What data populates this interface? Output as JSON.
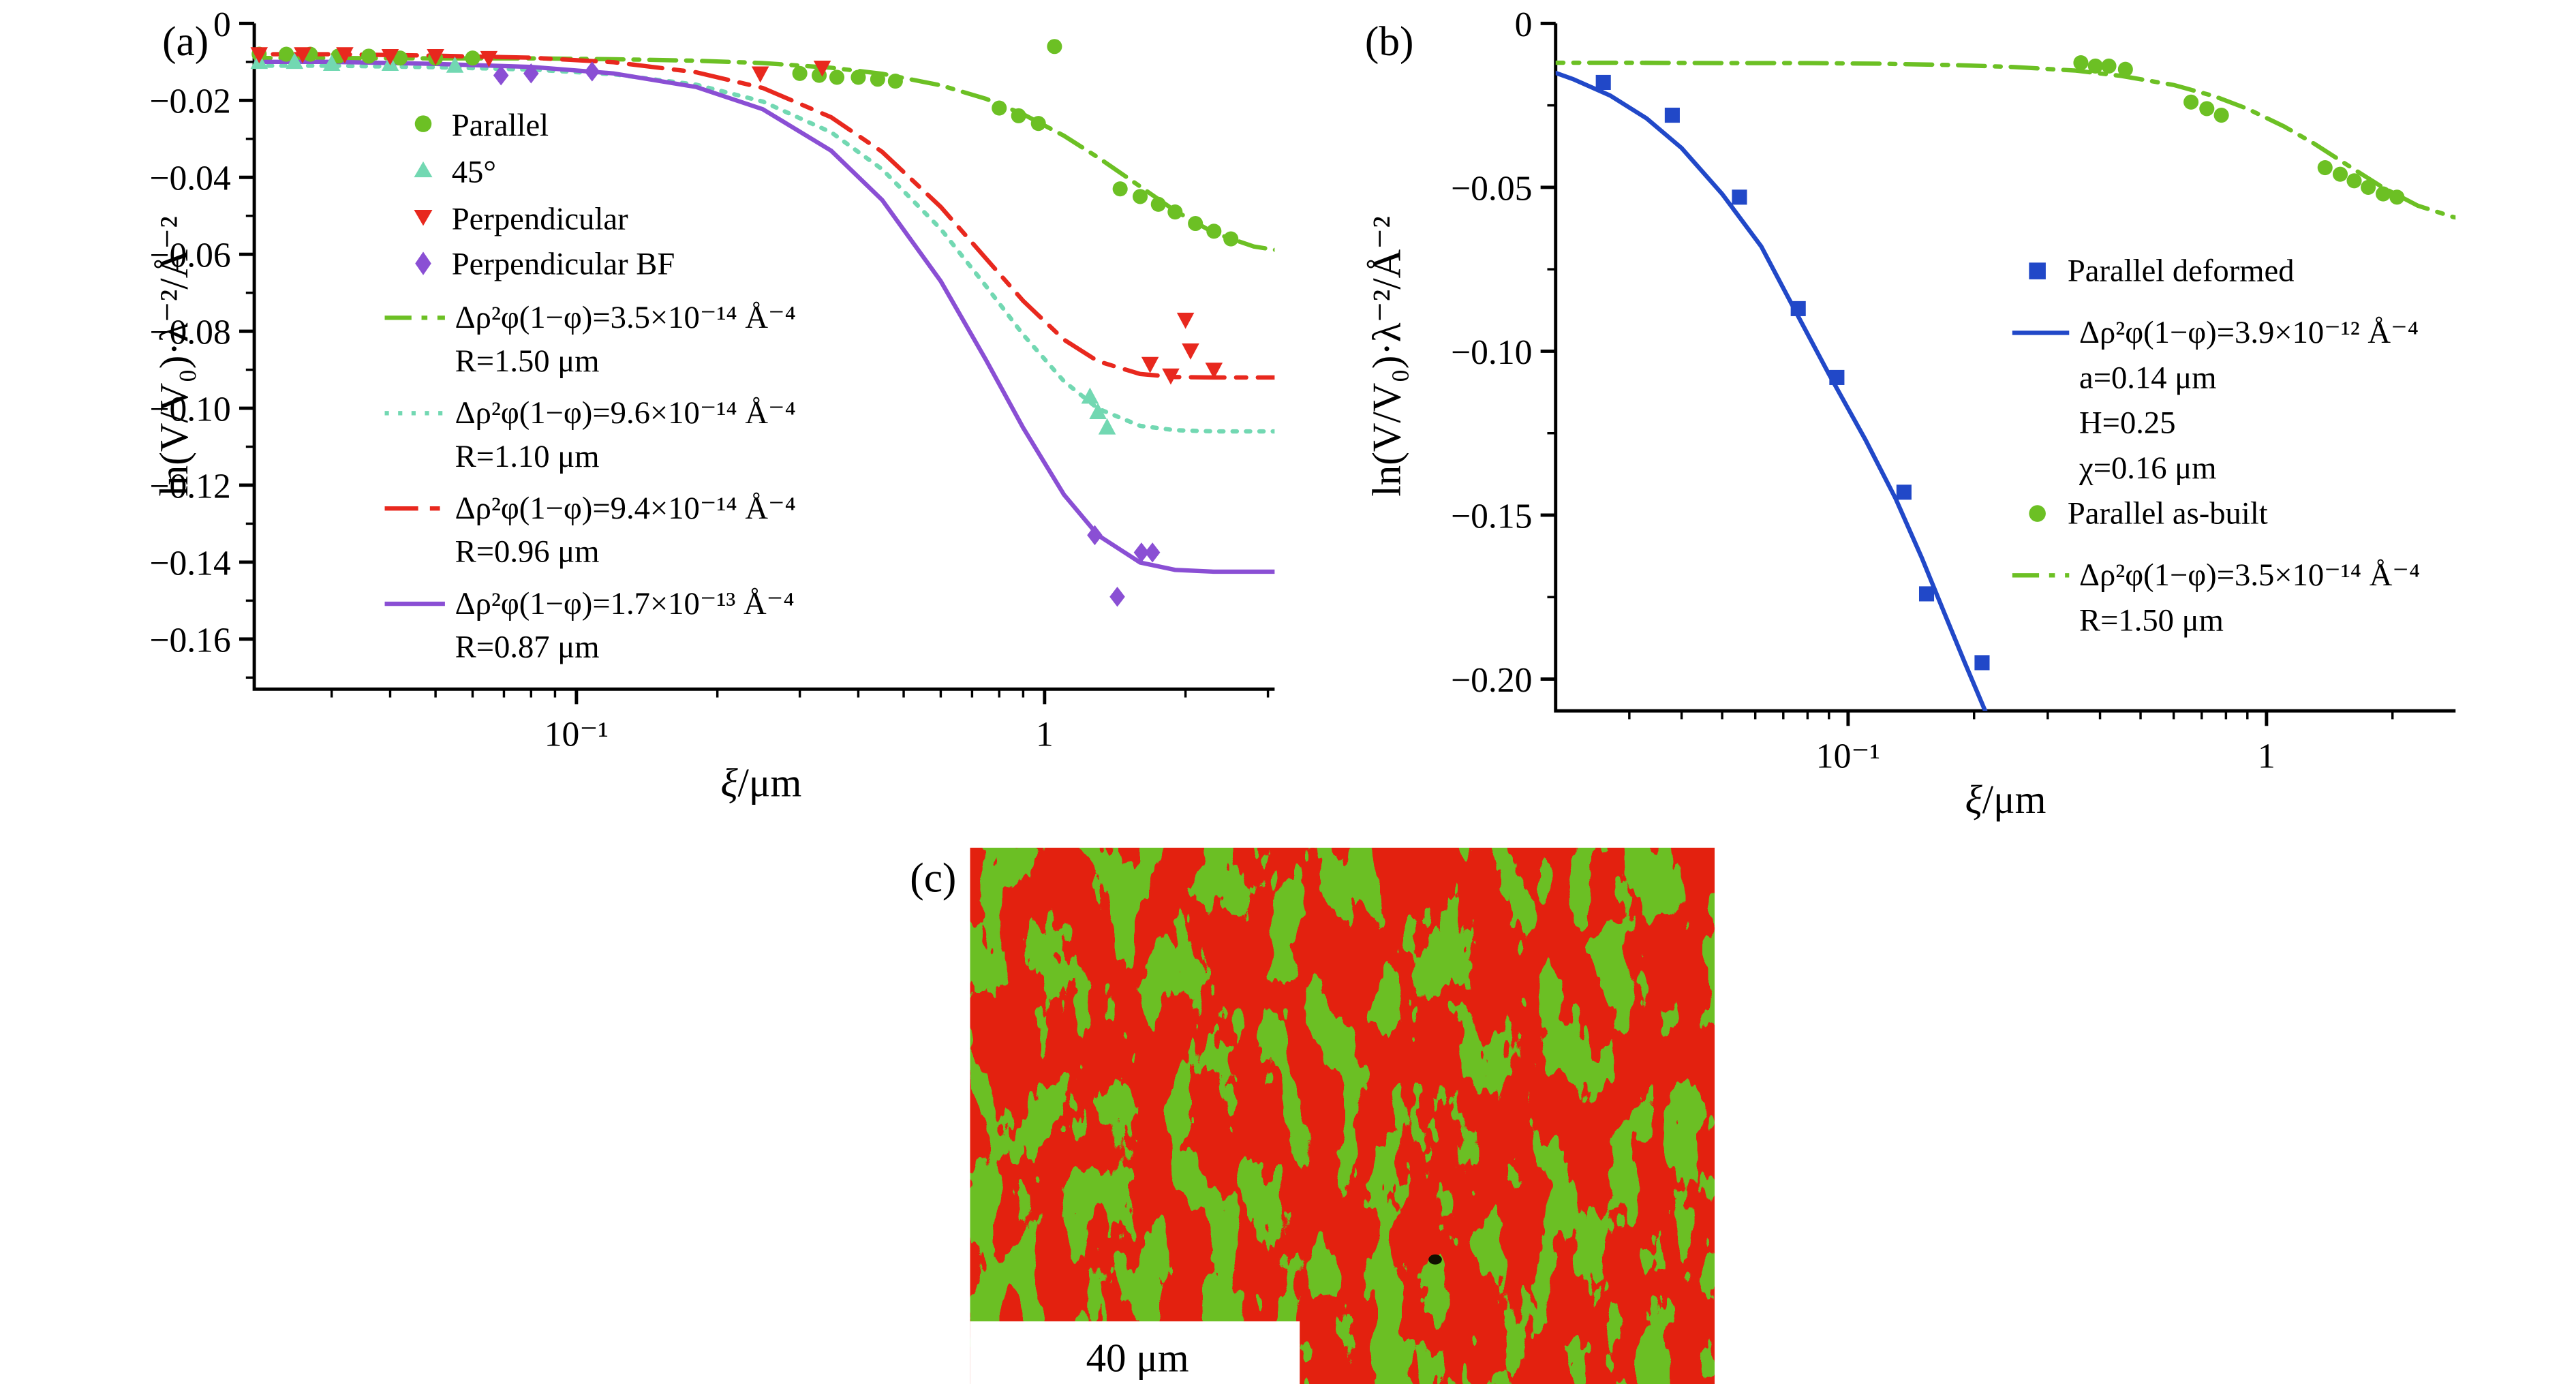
{
  "figure": {
    "panels": [
      {
        "label": "(a)"
      },
      {
        "label": "(b)"
      },
      {
        "label": "(c)"
      }
    ]
  },
  "chart_data": [
    {
      "id": "panel_a",
      "type": "scatter",
      "x_scale": "log",
      "xlabel_symbol": "ξ",
      "xlabel_unit": "/μm",
      "ylabel": "ln(V/V₀)·λ⁻²/Å⁻²",
      "xlim": [
        0.0205,
        3.1
      ],
      "ylim": [
        -0.173,
        0
      ],
      "grid": false,
      "legend_position": "upper-left-inside",
      "x_ticks": [
        {
          "value": 0.1,
          "label": "10⁻¹"
        },
        {
          "value": 1,
          "label": "1"
        }
      ],
      "y_ticks": [
        {
          "value": 0,
          "label": "0"
        },
        {
          "value": -0.02,
          "label": "−0.02"
        },
        {
          "value": -0.04,
          "label": "−0.04"
        },
        {
          "value": -0.06,
          "label": "−0.06"
        },
        {
          "value": -0.08,
          "label": "−0.08"
        },
        {
          "value": -0.1,
          "label": "−0.10"
        },
        {
          "value": -0.12,
          "label": "−0.12"
        },
        {
          "value": -0.14,
          "label": "−0.14"
        },
        {
          "value": -0.16,
          "label": "−0.16"
        }
      ],
      "y_minor": [
        -0.01,
        -0.03,
        -0.05,
        -0.07,
        -0.09,
        -0.11,
        -0.13,
        -0.15,
        -0.17
      ],
      "series": [
        {
          "name": "Parallel",
          "marker": "circle",
          "color": "#6CC024",
          "x": [
            0.021,
            0.024,
            0.027,
            0.031,
            0.036,
            0.042,
            0.05,
            0.06,
            0.3,
            0.33,
            0.36,
            0.4,
            0.44,
            0.48,
            0.8,
            0.88,
            0.97,
            1.05,
            1.45,
            1.6,
            1.75,
            1.9,
            2.1,
            2.3,
            2.5
          ],
          "y": [
            -0.008,
            -0.008,
            -0.008,
            -0.0085,
            -0.0085,
            -0.009,
            -0.009,
            -0.009,
            -0.013,
            -0.0135,
            -0.014,
            -0.014,
            -0.0145,
            -0.015,
            -0.022,
            -0.024,
            -0.026,
            -0.006,
            -0.043,
            -0.045,
            -0.047,
            -0.049,
            -0.052,
            -0.054,
            -0.056
          ]
        },
        {
          "name": "45°",
          "marker": "triangle-up",
          "color": "#72D8B2",
          "x": [
            0.021,
            0.025,
            0.03,
            0.04,
            0.055,
            1.25,
            1.3,
            1.36
          ],
          "y": [
            -0.01,
            -0.01,
            -0.0105,
            -0.0105,
            -0.011,
            -0.097,
            -0.101,
            -0.105
          ]
        },
        {
          "name": "Perpendicular",
          "marker": "triangle-down",
          "color": "#E8281E",
          "x": [
            0.021,
            0.026,
            0.032,
            0.04,
            0.05,
            0.065,
            0.247,
            0.335,
            1.68,
            1.86,
            2.0,
            2.05,
            2.3
          ],
          "y": [
            -0.008,
            -0.008,
            -0.008,
            -0.0085,
            -0.0085,
            -0.009,
            -0.013,
            -0.0115,
            -0.0885,
            -0.0915,
            -0.077,
            -0.085,
            -0.09
          ]
        },
        {
          "name": "Perpendicular BF",
          "marker": "diamond",
          "color": "#8A4FD4",
          "x": [
            0.069,
            0.08,
            0.108,
            1.28,
            1.43,
            1.61,
            1.7
          ],
          "y": [
            -0.0135,
            -0.013,
            -0.0125,
            -0.133,
            -0.149,
            -0.1375,
            -0.1375
          ]
        }
      ],
      "fits": [
        {
          "label1": "Δρ²φ(1−φ)=3.5×10⁻¹⁴ Å⁻⁴",
          "label2": "R=1.50 μm",
          "color": "#6CC024",
          "dash": "dashdot",
          "x": [
            0.018,
            0.03,
            0.05,
            0.08,
            0.12,
            0.18,
            0.25,
            0.35,
            0.45,
            0.6,
            0.75,
            0.9,
            1.1,
            1.3,
            1.6,
            1.9,
            2.3,
            2.8,
            3.4,
            4.0
          ],
          "y": [
            -0.009,
            -0.009,
            -0.0091,
            -0.0091,
            -0.0093,
            -0.0097,
            -0.0103,
            -0.0115,
            -0.0131,
            -0.0161,
            -0.0196,
            -0.0236,
            -0.0292,
            -0.0348,
            -0.0424,
            -0.0487,
            -0.0544,
            -0.058,
            -0.0596,
            -0.06
          ]
        },
        {
          "label1": "Δρ²φ(1−φ)=9.6×10⁻¹⁴ Å⁻⁴",
          "label2": "R=1.10 μm",
          "color": "#72D8B2",
          "dash": "dotted",
          "x": [
            0.018,
            0.03,
            0.05,
            0.08,
            0.12,
            0.18,
            0.25,
            0.35,
            0.45,
            0.6,
            0.75,
            0.9,
            1.1,
            1.3,
            1.6,
            1.9,
            2.3,
            2.8,
            3.4,
            4.0
          ],
          "y": [
            -0.011,
            -0.011,
            -0.0114,
            -0.012,
            -0.0132,
            -0.0159,
            -0.0203,
            -0.0283,
            -0.0379,
            -0.0534,
            -0.0683,
            -0.0809,
            -0.093,
            -0.1001,
            -0.1046,
            -0.1057,
            -0.106,
            -0.106,
            -0.106,
            -0.106
          ]
        },
        {
          "label1": "Δρ²φ(1−φ)=9.4×10⁻¹⁴ Å⁻⁴",
          "label2": "R=0.96 μm",
          "color": "#E8281E",
          "dash": "dashdotlong",
          "x": [
            0.018,
            0.03,
            0.05,
            0.08,
            0.12,
            0.18,
            0.25,
            0.35,
            0.45,
            0.6,
            0.75,
            0.9,
            1.1,
            1.3,
            1.6,
            1.9,
            2.3,
            2.8,
            3.4,
            4.0
          ],
          "y": [
            -0.008,
            -0.008,
            -0.0084,
            -0.0089,
            -0.0101,
            -0.0127,
            -0.0168,
            -0.0244,
            -0.0334,
            -0.0477,
            -0.0611,
            -0.0721,
            -0.0822,
            -0.0878,
            -0.0911,
            -0.0919,
            -0.092,
            -0.092,
            -0.092,
            -0.092
          ]
        },
        {
          "label1": "Δρ²φ(1−φ)=1.7×10⁻¹³ Å⁻⁴",
          "label2": "R=0.87 μm",
          "color": "#8A4FD4",
          "dash": "solid",
          "x": [
            0.018,
            0.03,
            0.05,
            0.08,
            0.12,
            0.18,
            0.25,
            0.35,
            0.45,
            0.6,
            0.75,
            0.9,
            1.1,
            1.3,
            1.6,
            1.9,
            2.3,
            2.8,
            3.4,
            4.0
          ],
          "y": [
            -0.01,
            -0.01,
            -0.0105,
            -0.0113,
            -0.013,
            -0.0165,
            -0.0223,
            -0.0331,
            -0.0459,
            -0.067,
            -0.0875,
            -0.1051,
            -0.1225,
            -0.133,
            -0.1401,
            -0.142,
            -0.1425,
            -0.1425,
            -0.1425,
            -0.1425
          ]
        }
      ]
    },
    {
      "id": "panel_b",
      "type": "scatter",
      "x_scale": "log",
      "xlabel_symbol": "ξ",
      "xlabel_unit": "/μm",
      "ylabel": "ln(V/V₀)·λ⁻²/Å⁻²",
      "xlim": [
        0.02,
        2.83
      ],
      "ylim": [
        -0.2097,
        0
      ],
      "grid": false,
      "legend_position": "middle-right-inside",
      "x_ticks": [
        {
          "value": 0.1,
          "label": "10⁻¹"
        },
        {
          "value": 1,
          "label": "1"
        }
      ],
      "y_ticks": [
        {
          "value": 0,
          "label": "0"
        },
        {
          "value": -0.05,
          "label": "−0.05"
        },
        {
          "value": -0.1,
          "label": "−0.10"
        },
        {
          "value": -0.15,
          "label": "−0.15"
        },
        {
          "value": -0.2,
          "label": "−0.20"
        }
      ],
      "y_minor": [
        -0.025,
        -0.075,
        -0.125,
        -0.175
      ],
      "series": [
        {
          "name": "Parallel deformed",
          "marker": "square",
          "color": "#2148C8",
          "x": [
            0.026,
            0.038,
            0.055,
            0.076,
            0.094,
            0.136,
            0.154,
            0.209
          ],
          "y": [
            -0.018,
            -0.028,
            -0.053,
            -0.087,
            -0.108,
            -0.143,
            -0.174,
            -0.195
          ]
        },
        {
          "name": "Parallel as-built",
          "marker": "circle",
          "color": "#6CC024",
          "x": [
            0.36,
            0.39,
            0.42,
            0.46,
            0.66,
            0.72,
            0.78,
            1.38,
            1.5,
            1.62,
            1.75,
            1.9,
            2.05
          ],
          "y": [
            -0.012,
            -0.013,
            -0.013,
            -0.014,
            -0.024,
            -0.026,
            -0.028,
            -0.044,
            -0.046,
            -0.048,
            -0.05,
            -0.052,
            -0.053
          ]
        }
      ],
      "fits": [
        {
          "label1": "Δρ²φ(1−φ)=3.9×10⁻¹² Å⁻⁴",
          "label2": "a=0.14 μm",
          "label3": "H=0.25",
          "label4": "χ=0.16 μm",
          "color": "#2148C8",
          "dash": "solid",
          "x": [
            0.018,
            0.022,
            0.027,
            0.033,
            0.04,
            0.05,
            0.062,
            0.075,
            0.09,
            0.11,
            0.13,
            0.15,
            0.17,
            0.19,
            0.21,
            0.23
          ],
          "y": [
            -0.013,
            -0.017,
            -0.022,
            -0.029,
            -0.038,
            -0.052,
            -0.068,
            -0.088,
            -0.107,
            -0.127,
            -0.145,
            -0.163,
            -0.18,
            -0.195,
            -0.208,
            -0.22
          ]
        },
        {
          "label1": "Δρ²φ(1−φ)=3.5×10⁻¹⁴ Å⁻⁴",
          "label2": "R=1.50 μm",
          "color": "#6CC024",
          "dash": "dashdot",
          "x": [
            0.018,
            0.03,
            0.05,
            0.08,
            0.12,
            0.18,
            0.25,
            0.35,
            0.45,
            0.6,
            0.75,
            0.9,
            1.1,
            1.3,
            1.6,
            1.9,
            2.3,
            2.8,
            3.4,
            4.0
          ],
          "y": [
            -0.012,
            -0.012,
            -0.0121,
            -0.0121,
            -0.0123,
            -0.0127,
            -0.0133,
            -0.0144,
            -0.016,
            -0.0188,
            -0.0222,
            -0.026,
            -0.0314,
            -0.0367,
            -0.0441,
            -0.0501,
            -0.0556,
            -0.0591,
            -0.0606,
            -0.0609
          ]
        }
      ]
    }
  ],
  "micrograph": {
    "scale_bar_label": "40 μm",
    "phase_red_color": "#E3210F",
    "phase_green_color": "#6ABE23"
  }
}
